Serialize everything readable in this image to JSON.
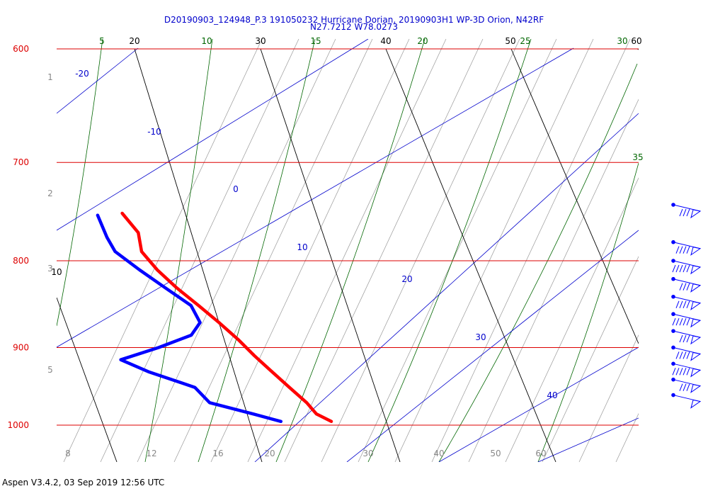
{
  "header": {
    "title_line1": "D20190903_124948_P.3 191050232 Hurricane Dorian, 20190903H1 WP-3D Orion, N42RF",
    "title_line2": "N27.7212 W78.0273"
  },
  "footer": {
    "text": "Aspen V3.4.2, 03 Sep 2019  12:56 UTC"
  },
  "colors": {
    "isobar": "#dd0000",
    "isotherm": "#000000",
    "dry_adiabat": "#0000cc",
    "moist_adiabat": "#006600",
    "mixing_ratio": "#999999",
    "temperature_trace": "#ff0000",
    "dewpoint_trace": "#0000ff",
    "wind_barb": "#0000ff"
  },
  "chart_data": {
    "type": "skew-t",
    "pressure_levels": [
      "600",
      "700",
      "800",
      "900",
      "1000"
    ],
    "height_labels": [
      "1",
      "2",
      "3",
      "5"
    ],
    "isotherm_labels": [
      "20",
      "30",
      "40",
      "50",
      "60",
      "10"
    ],
    "dry_adiabat_labels": [
      "-20",
      "-10",
      "0",
      "10",
      "20",
      "30",
      "40"
    ],
    "moist_adiabat_labels": [
      "5",
      "10",
      "15",
      "20",
      "25",
      "30",
      "35"
    ],
    "mixing_ratio_labels": [
      "8",
      "12",
      "16",
      "20",
      "30",
      "40",
      "50",
      "60"
    ],
    "temperature_profile": [
      {
        "p": 750,
        "t": 15.0
      },
      {
        "p": 770,
        "t": 15.8
      },
      {
        "p": 790,
        "t": 15.6
      },
      {
        "p": 810,
        "t": 16.4
      },
      {
        "p": 830,
        "t": 17.5
      },
      {
        "p": 850,
        "t": 18.8
      },
      {
        "p": 870,
        "t": 20.0
      },
      {
        "p": 890,
        "t": 21.1
      },
      {
        "p": 910,
        "t": 22.0
      },
      {
        "p": 930,
        "t": 23.0
      },
      {
        "p": 950,
        "t": 24.0
      },
      {
        "p": 970,
        "t": 25.0
      },
      {
        "p": 985,
        "t": 25.5
      },
      {
        "p": 995,
        "t": 26.5
      }
    ],
    "dewpoint_profile": [
      {
        "p": 752,
        "t": 13.0
      },
      {
        "p": 775,
        "t": 13.2
      },
      {
        "p": 790,
        "t": 13.5
      },
      {
        "p": 810,
        "t": 15.0
      },
      {
        "p": 830,
        "t": 16.6
      },
      {
        "p": 850,
        "t": 18.2
      },
      {
        "p": 870,
        "t": 18.5
      },
      {
        "p": 885,
        "t": 17.5
      },
      {
        "p": 900,
        "t": 14.6
      },
      {
        "p": 915,
        "t": 11.3
      },
      {
        "p": 930,
        "t": 13.2
      },
      {
        "p": 950,
        "t": 16.5
      },
      {
        "p": 970,
        "t": 17.3
      },
      {
        "p": 985,
        "t": 20.5
      },
      {
        "p": 995,
        "t": 22.5
      }
    ],
    "wind_barb_levels": [
      745,
      780,
      800,
      820,
      840,
      860,
      880,
      900,
      920,
      940,
      960
    ]
  }
}
